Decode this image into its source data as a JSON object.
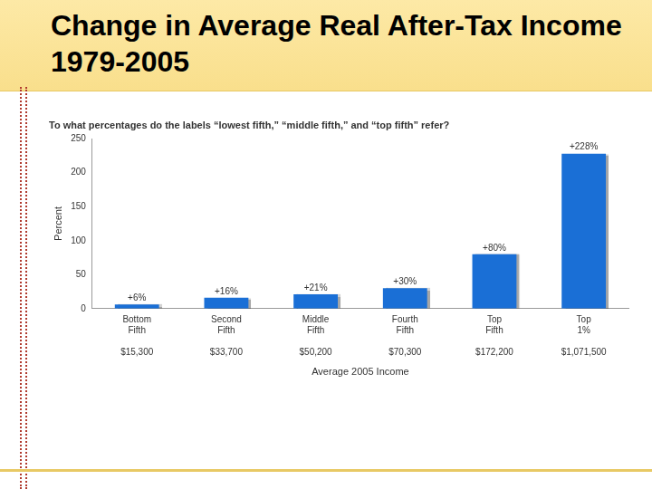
{
  "chart_data": {
    "type": "bar",
    "title": "Change in Average Real After-Tax Income 1979-2005",
    "subtitle": "To what percentages do the labels “lowest fifth,” “middle fifth,” and “top fifth” refer?",
    "categories": [
      "Bottom Fifth",
      "Second Fifth",
      "Middle Fifth",
      "Fourth Fifth",
      "Top Fifth",
      "Top 1%"
    ],
    "income_labels": [
      "$15,300",
      "$33,700",
      "$50,200",
      "$70,300",
      "$172,200",
      "$1,071,500"
    ],
    "values": [
      6,
      16,
      21,
      30,
      80,
      228
    ],
    "value_labels": [
      "+6%",
      "+16%",
      "+21%",
      "+30%",
      "+80%",
      "+228%"
    ],
    "data_labels": true,
    "color": "#1a6fd6",
    "x_label": "Average 2005 Income",
    "y_label": "Percent",
    "ylim": [
      0,
      250
    ],
    "yticks": [
      0,
      50,
      100,
      150,
      200,
      250
    ],
    "grid": false
  }
}
